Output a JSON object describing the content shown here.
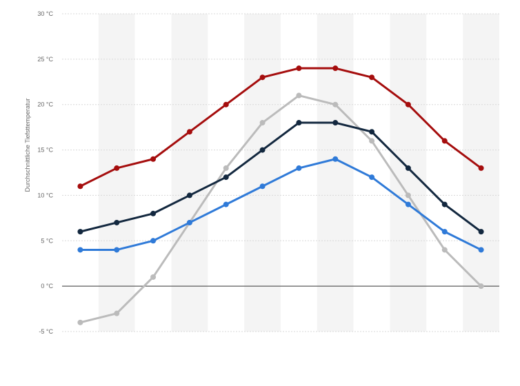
{
  "chart_data": {
    "type": "line",
    "title": "",
    "xlabel": "",
    "ylabel": "Durchschnittliche Tiefsttemperatur",
    "ylim": [
      -5,
      30
    ],
    "yticks": [
      -5,
      0,
      5,
      10,
      15,
      20,
      25,
      30
    ],
    "ytick_labels": [
      "-5 °C",
      "0 °C",
      "5 °C",
      "10 °C",
      "15 °C",
      "20 °C",
      "25 °C",
      "30 °C"
    ],
    "x": [
      1,
      2,
      3,
      4,
      5,
      6,
      7,
      8,
      9,
      10,
      11,
      12
    ],
    "grid": true,
    "legend": "none",
    "series": [
      {
        "color": "#a50d0d",
        "values": [
          11,
          13,
          14,
          17,
          20,
          23,
          24,
          24,
          23,
          20,
          16,
          13
        ]
      },
      {
        "color": "#bbbbbb",
        "values": [
          -4,
          -3,
          1,
          7,
          13,
          18,
          21,
          20,
          16,
          10,
          4,
          0
        ]
      },
      {
        "color": "#13283f",
        "values": [
          6,
          7,
          8,
          10,
          12,
          15,
          18,
          18,
          17,
          13,
          9,
          6
        ]
      },
      {
        "color": "#2f7ad8",
        "values": [
          4,
          4,
          5,
          7,
          9,
          11,
          13,
          14,
          12,
          9,
          6,
          4
        ]
      }
    ]
  }
}
